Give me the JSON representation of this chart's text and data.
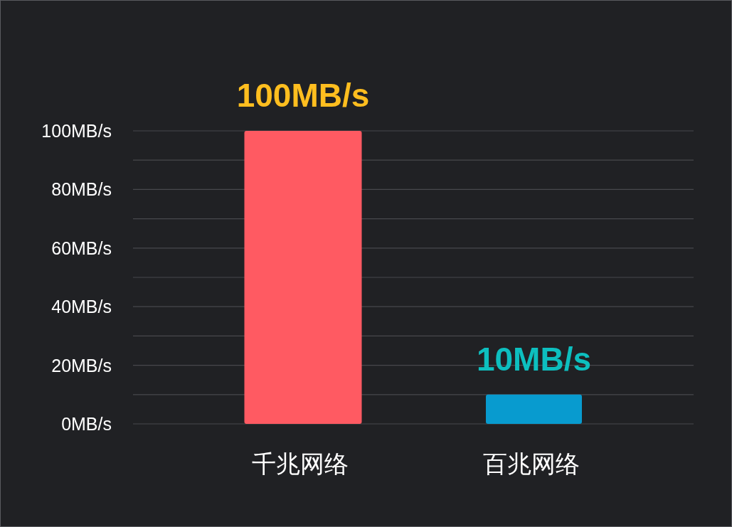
{
  "chart_data": {
    "type": "bar",
    "categories": [
      "千兆网络",
      "百兆网络"
    ],
    "values": [
      100,
      10
    ],
    "colors": [
      "#ff5a62",
      "#089bcf"
    ],
    "value_labels": [
      "100MB/s",
      "10MB/s"
    ],
    "ylim": [
      0,
      100
    ],
    "yticks": [
      {
        "value": 0,
        "label": "0MB/s"
      },
      {
        "value": 10,
        "label": null
      },
      {
        "value": 20,
        "label": "20MB/s"
      },
      {
        "value": 30,
        "label": null
      },
      {
        "value": 40,
        "label": "40MB/s"
      },
      {
        "value": 50,
        "label": null
      },
      {
        "value": 60,
        "label": "60MB/s"
      },
      {
        "value": 70,
        "label": null
      },
      {
        "value": 80,
        "label": "80MB/s"
      },
      {
        "value": 90,
        "label": null
      },
      {
        "value": 100,
        "label": "100MB/s"
      }
    ],
    "grid": "y"
  }
}
